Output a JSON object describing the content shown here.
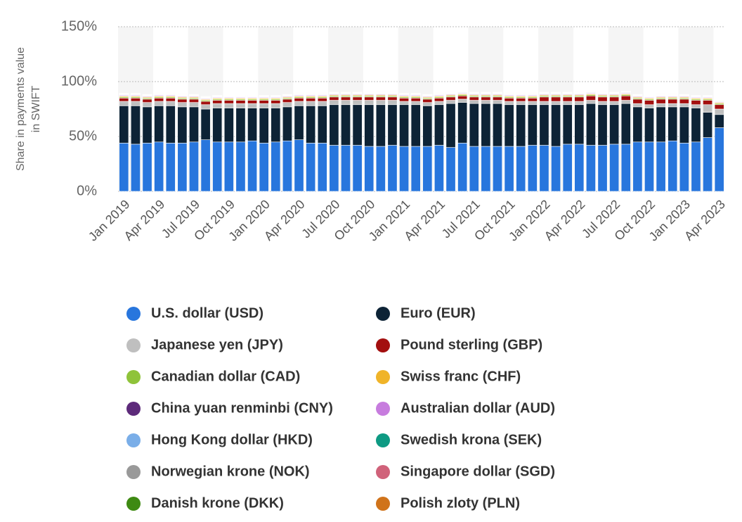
{
  "chart_data": {
    "type": "stacked_bar",
    "ylabel": [
      "Share in payments value",
      "in SWIFT"
    ],
    "categories": [
      "Jan 2019",
      null,
      null,
      "Apr 2019",
      null,
      null,
      "Jul 2019",
      null,
      null,
      "Oct 2019",
      null,
      null,
      "Jan 2020",
      null,
      null,
      "Apr 2020",
      null,
      null,
      "Jul 2020",
      null,
      null,
      "Oct 2020",
      null,
      null,
      "Jan 2021",
      null,
      null,
      "Apr 2021",
      null,
      null,
      "Jul 2021",
      null,
      null,
      "Oct 2021",
      null,
      null,
      "Jan 2022",
      null,
      null,
      "Apr 2022",
      null,
      null,
      "Jul 2022",
      null,
      null,
      "Oct 2022",
      null,
      null,
      "Jan 2023",
      null,
      null,
      "Apr 2023"
    ],
    "ylim": [
      0,
      150
    ],
    "yticks": [
      {
        "value": 0,
        "label": "0%"
      },
      {
        "value": 50,
        "label": "50%"
      },
      {
        "value": 100,
        "label": "100%"
      },
      {
        "value": 150,
        "label": "150%"
      }
    ],
    "grid": true,
    "series": [
      {
        "name": "U.S. dollar (USD)",
        "color": "#2876dd",
        "values": [
          44,
          43,
          44,
          45,
          44,
          44,
          45,
          47,
          45,
          45,
          45,
          46,
          44,
          45,
          46,
          47,
          44,
          44,
          42,
          42,
          42,
          41,
          41,
          42,
          41,
          41,
          41,
          42,
          40,
          44,
          41,
          41,
          41,
          41,
          41,
          42,
          42,
          41,
          43,
          43,
          42,
          42,
          43,
          43,
          45,
          45,
          45,
          46,
          44,
          45,
          49,
          58
        ]
      },
      {
        "name": "Euro (EUR)",
        "color": "#0d2336",
        "values": [
          34,
          35,
          33,
          33,
          34,
          33,
          32,
          28,
          31,
          31,
          31,
          30,
          32,
          31,
          31,
          31,
          34,
          34,
          37,
          37,
          37,
          38,
          38,
          37,
          38,
          38,
          37,
          37,
          40,
          37,
          39,
          39,
          39,
          38,
          38,
          37,
          37,
          38,
          36,
          36,
          38,
          37,
          36,
          37,
          32,
          31,
          32,
          31,
          33,
          31,
          23,
          12
        ]
      },
      {
        "name": "Japanese yen (JPY)",
        "color": "#bfbfbf",
        "values": [
          4,
          4,
          4,
          4,
          4,
          4,
          4,
          4,
          4,
          4,
          4,
          4,
          4,
          4,
          4,
          4,
          4,
          4,
          4,
          4,
          4,
          4,
          4,
          4,
          3,
          3,
          3,
          3,
          3,
          3,
          3,
          3,
          3,
          3,
          3,
          3,
          3,
          3,
          3,
          3,
          3,
          3,
          3,
          3,
          3,
          3,
          3,
          3,
          3,
          3,
          7,
          5
        ]
      },
      {
        "name": "Pound sterling (GBP)",
        "color": "#a30f0f",
        "values": [
          3,
          3,
          3,
          3,
          3,
          3,
          3,
          3,
          3,
          3,
          3,
          3,
          3,
          3,
          3,
          3,
          3,
          3,
          3,
          3,
          3,
          3,
          3,
          3,
          3,
          3,
          3,
          3,
          3,
          3,
          3,
          3,
          3,
          3,
          3,
          3,
          4,
          4,
          4,
          4,
          4,
          4,
          4,
          4,
          4,
          4,
          4,
          4,
          4,
          4,
          4,
          4
        ]
      },
      {
        "name": "Canadian dollar (CAD)",
        "color": "#8fc33a",
        "values": [
          1,
          1,
          1,
          1,
          1,
          1,
          1,
          1,
          1,
          1,
          1,
          1,
          1,
          1,
          1,
          1,
          1,
          1,
          1,
          1,
          1,
          1,
          1,
          1,
          1,
          1,
          1,
          1,
          1,
          1,
          1,
          1,
          1,
          1,
          1,
          1,
          1,
          1,
          1,
          1,
          1,
          1,
          1,
          1,
          1,
          1,
          1,
          1,
          1,
          1,
          1,
          1
        ]
      },
      {
        "name": "Swiss franc (CHF)",
        "color": "#f0b429",
        "values": [
          0.8,
          0.8,
          0.8,
          0.8,
          0.8,
          0.8,
          0.8,
          0.8,
          0.8,
          0.8,
          0.8,
          0.8,
          0.8,
          0.8,
          0.8,
          0.8,
          0.8,
          0.8,
          0.8,
          0.8,
          0.8,
          0.8,
          0.8,
          0.8,
          0.8,
          0.8,
          0.8,
          0.8,
          0.8,
          0.8,
          0.8,
          0.8,
          0.8,
          0.8,
          0.8,
          0.8,
          0.8,
          0.8,
          0.8,
          0.8,
          0.8,
          0.8,
          0.8,
          0.8,
          0.8,
          0.8,
          0.8,
          0.8,
          0.8,
          0.8,
          0.8,
          0.8
        ]
      },
      {
        "name": "China yuan renminbi (CNY)",
        "color": "#5d2a7a",
        "values": [
          0.3,
          0.3,
          0.3,
          0.3,
          0.3,
          0.3,
          0.3,
          0.3,
          0.3,
          0.3,
          0.3,
          0.3,
          0.3,
          0.3,
          0.3,
          0.3,
          0.3,
          0.3,
          0.3,
          0.3,
          0.3,
          0.3,
          0.3,
          0.3,
          0.3,
          0.3,
          0.3,
          0.3,
          0.3,
          0.3,
          0.3,
          0.3,
          0.3,
          0.3,
          0.3,
          0.3,
          0.3,
          0.3,
          0.3,
          0.3,
          0.3,
          0.3,
          0.3,
          0.3,
          0.3,
          0.3,
          0.3,
          0.3,
          0.3,
          0.3,
          0.3,
          0.3
        ]
      },
      {
        "name": "Australian dollar (AUD)",
        "color": "#c77cde",
        "values": [
          0.6,
          0.6,
          0.6,
          0.6,
          0.6,
          0.6,
          0.6,
          0.6,
          0.6,
          0.6,
          0.6,
          0.6,
          0.6,
          0.6,
          0.6,
          0.6,
          0.6,
          0.6,
          0.6,
          0.6,
          0.6,
          0.6,
          0.6,
          0.6,
          0.6,
          0.6,
          0.6,
          0.6,
          0.6,
          0.6,
          0.6,
          0.6,
          0.6,
          0.6,
          0.6,
          0.6,
          0.6,
          0.6,
          0.6,
          0.6,
          0.6,
          0.6,
          0.6,
          0.6,
          0.6,
          0.6,
          0.6,
          0.6,
          0.6,
          0.6,
          0.6,
          0.6
        ]
      },
      {
        "name": "Hong Kong dollar (HKD)",
        "color": "#7aaee8",
        "values": [
          0.3,
          0.3,
          0.3,
          0.3,
          0.3,
          0.3,
          0.3,
          0.3,
          0.3,
          0.3,
          0.3,
          0.3,
          0.3,
          0.3,
          0.3,
          0.3,
          0.3,
          0.3,
          0.3,
          0.3,
          0.3,
          0.3,
          0.3,
          0.3,
          0.3,
          0.3,
          0.3,
          0.3,
          0.3,
          0.3,
          0.3,
          0.3,
          0.3,
          0.3,
          0.3,
          0.3,
          0.3,
          0.3,
          0.3,
          0.3,
          0.3,
          0.3,
          0.3,
          0.3,
          0.3,
          0.3,
          0.3,
          0.3,
          0.3,
          0.3,
          0.3,
          0.3
        ]
      },
      {
        "name": "Swedish krona (SEK)",
        "color": "#0e9a83",
        "values": [
          0.3,
          0.3,
          0.3,
          0.3,
          0.3,
          0.3,
          0.3,
          0.3,
          0.3,
          0.3,
          0.3,
          0.3,
          0.3,
          0.3,
          0.3,
          0.3,
          0.3,
          0.3,
          0.3,
          0.3,
          0.3,
          0.3,
          0.3,
          0.3,
          0.3,
          0.3,
          0.3,
          0.3,
          0.3,
          0.3,
          0.3,
          0.3,
          0.3,
          0.3,
          0.3,
          0.3,
          0.3,
          0.3,
          0.3,
          0.3,
          0.3,
          0.3,
          0.3,
          0.3,
          0.3,
          0.3,
          0.3,
          0.3,
          0.3,
          0.3,
          0.3,
          0.3
        ]
      },
      {
        "name": "Norwegian krone (NOK)",
        "color": "#999999",
        "values": [
          0.3,
          0.3,
          0.3,
          0.3,
          0.3,
          0.3,
          0.3,
          0.3,
          0.3,
          0.3,
          0.3,
          0.3,
          0.3,
          0.3,
          0.3,
          0.3,
          0.3,
          0.3,
          0.3,
          0.3,
          0.3,
          0.3,
          0.3,
          0.3,
          0.3,
          0.3,
          0.3,
          0.3,
          0.3,
          0.3,
          0.3,
          0.3,
          0.3,
          0.3,
          0.3,
          0.3,
          0.3,
          0.3,
          0.3,
          0.3,
          0.3,
          0.3,
          0.3,
          0.3,
          0.3,
          0.3,
          0.3,
          0.3,
          0.3,
          0.3,
          0.3,
          0.3
        ]
      },
      {
        "name": "Singapore dollar (SGD)",
        "color": "#d0627a",
        "values": [
          0.3,
          0.3,
          0.3,
          0.3,
          0.3,
          0.3,
          0.3,
          0.3,
          0.3,
          0.3,
          0.3,
          0.3,
          0.3,
          0.3,
          0.3,
          0.3,
          0.3,
          0.3,
          0.3,
          0.3,
          0.3,
          0.3,
          0.3,
          0.3,
          0.3,
          0.3,
          0.3,
          0.3,
          0.3,
          0.3,
          0.3,
          0.3,
          0.3,
          0.3,
          0.3,
          0.3,
          0.3,
          0.3,
          0.3,
          0.3,
          0.3,
          0.3,
          0.3,
          0.3,
          0.3,
          0.3,
          0.3,
          0.3,
          0.3,
          0.3,
          0.3,
          0.3
        ]
      },
      {
        "name": "Danish krone (DKK)",
        "color": "#3e8a12",
        "values": [
          0.3,
          0.3,
          0.3,
          0.3,
          0.3,
          0.3,
          0.3,
          0.3,
          0.3,
          0.3,
          0.3,
          0.3,
          0.3,
          0.3,
          0.3,
          0.3,
          0.3,
          0.3,
          0.3,
          0.3,
          0.3,
          0.3,
          0.3,
          0.3,
          0.3,
          0.3,
          0.3,
          0.3,
          0.3,
          0.3,
          0.3,
          0.3,
          0.3,
          0.3,
          0.3,
          0.3,
          0.3,
          0.3,
          0.3,
          0.3,
          0.3,
          0.3,
          0.3,
          0.3,
          0.3,
          0.3,
          0.3,
          0.3,
          0.3,
          0.3,
          0.3,
          0.3
        ]
      },
      {
        "name": "Polish zloty (PLN)",
        "color": "#d0731a",
        "values": [
          0.3,
          0.3,
          0.3,
          0.3,
          0.3,
          0.3,
          0.3,
          0.3,
          0.3,
          0.3,
          0.3,
          0.3,
          0.3,
          0.3,
          0.3,
          0.3,
          0.3,
          0.3,
          0.3,
          0.3,
          0.3,
          0.3,
          0.3,
          0.3,
          0.3,
          0.3,
          0.3,
          0.3,
          0.3,
          0.3,
          0.3,
          0.3,
          0.3,
          0.3,
          0.3,
          0.3,
          0.3,
          0.3,
          0.3,
          0.3,
          0.3,
          0.3,
          0.3,
          0.3,
          0.3,
          0.3,
          0.3,
          0.3,
          0.3,
          0.3,
          0.3,
          0.3
        ]
      }
    ]
  }
}
